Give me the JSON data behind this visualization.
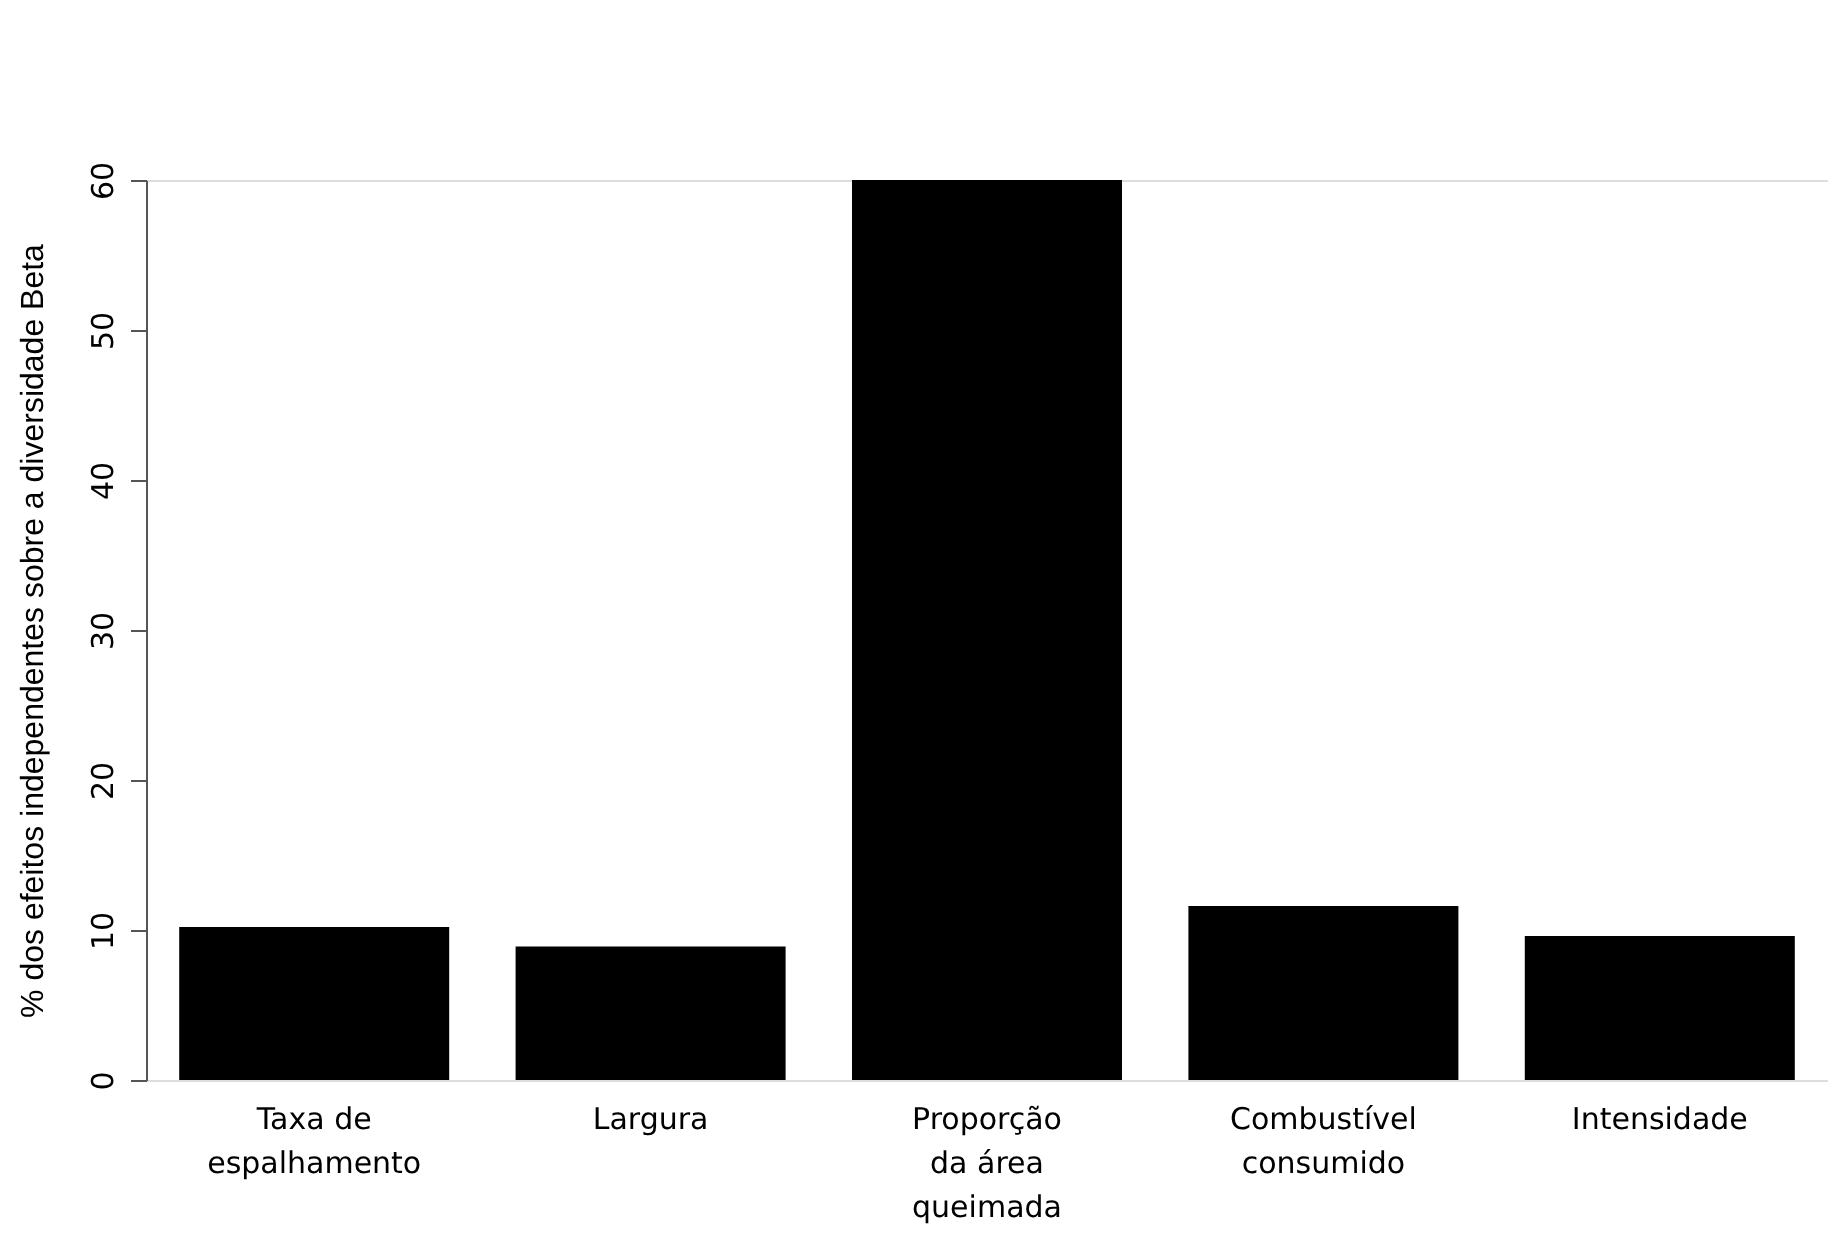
{
  "chart_data": {
    "type": "bar",
    "ylabel": "% dos efeitos independentes sobre a diversidade Beta",
    "categories": [
      "Taxa de\nespalhamento",
      "Largura",
      "Proporção\nda área\nqueimada",
      "Combustível\nconsumido",
      "Intensidade"
    ],
    "values": [
      10.2,
      8.9,
      60,
      11.6,
      9.6
    ],
    "color": "#000000",
    "ylim": [
      0,
      60
    ],
    "yticks": [
      0,
      10,
      20,
      30,
      40,
      50,
      60
    ],
    "grid": false
  }
}
